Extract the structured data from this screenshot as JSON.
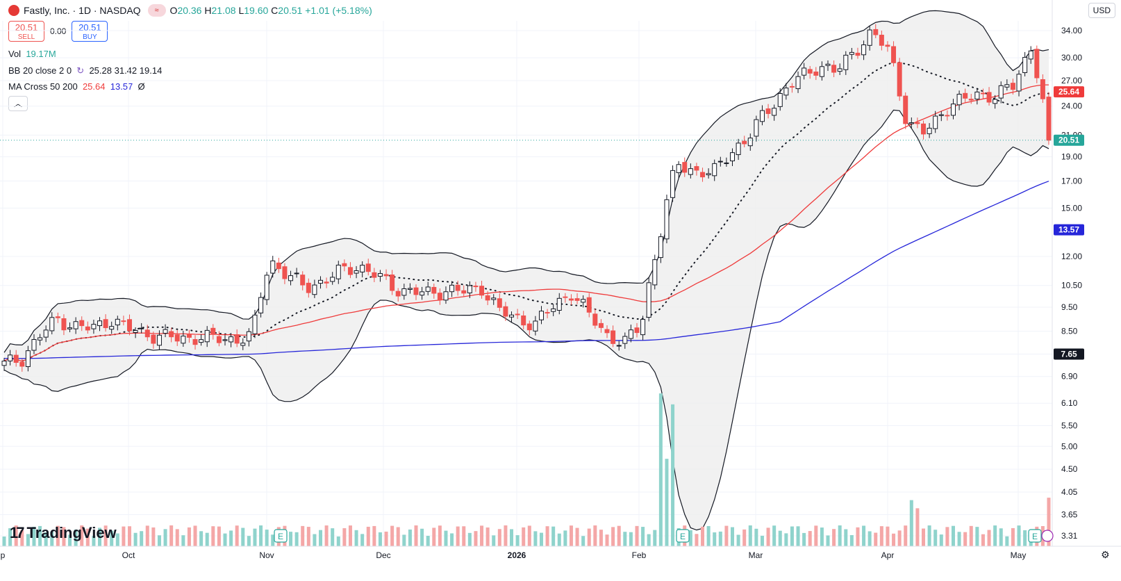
{
  "header": {
    "title": "Fastly, Inc. · 1D · NASDAQ",
    "open_label": "O",
    "open": "20.36",
    "high_label": "H",
    "high": "21.08",
    "low_label": "L",
    "low": "19.60",
    "close_label": "C",
    "close": "20.51",
    "change": "+1.01 (+5.18%)",
    "currency": "USD"
  },
  "trade": {
    "sell_price": "20.51",
    "sell_label": "SELL",
    "spread": "0.00",
    "buy_price": "20.51",
    "buy_label": "BUY"
  },
  "indicators": {
    "vol_label": "Vol",
    "vol_value": "19.17M",
    "bb_label": "BB 20 close 2 0",
    "bb_mid": "25.28",
    "bb_upper": "31.42",
    "bb_lower": "19.14",
    "ma_label": "MA Cross 50 200",
    "ma50": "25.64",
    "ma200": "13.57",
    "ma_extra": "Ø"
  },
  "brand": {
    "name": "TradingView"
  },
  "colors": {
    "up": "#26a69a",
    "down": "#ef5350",
    "ma50": "#ef3b3b",
    "ma200": "#2626d9",
    "bb_fill": "#ededed",
    "vol_up": "#8fd3cc",
    "vol_down": "#f4a7a7"
  },
  "chart_data": {
    "type": "candlestick",
    "scale": "log",
    "y_ticks": [
      "34.00",
      "30.00",
      "27.00",
      "24.00",
      "21.00",
      "19.00",
      "17.00",
      "15.00",
      "12.00",
      "10.50",
      "9.50",
      "8.50",
      "7.65",
      "6.90",
      "6.10",
      "5.50",
      "5.00",
      "4.50",
      "4.05",
      "3.65",
      "3.31"
    ],
    "x_labels": [
      "p",
      "Oct",
      "Nov",
      "Dec",
      "2026",
      "Feb",
      "Mar",
      "Apr",
      "May"
    ],
    "price_labels": [
      {
        "value": "25.64",
        "color": "#ef3b3b"
      },
      {
        "value": "20.51",
        "color": "#26a69a"
      },
      {
        "value": "13.57",
        "color": "#2626d9"
      },
      {
        "value": "7.65",
        "color": "#131722"
      }
    ],
    "earnings_markers": [
      "E",
      "E",
      "E"
    ],
    "ohlc_anchor_closes": [
      7.3,
      7.5,
      8.3,
      9.0,
      8.7,
      8.6,
      9.0,
      8.6,
      8.4,
      8.3,
      8.2,
      8.3,
      8.2,
      8.2,
      8.3,
      11.8,
      11.0,
      10.4,
      10.7,
      11.2,
      11.5,
      11.0,
      10.4,
      10.2,
      10.1,
      10.3,
      10.2,
      10.4,
      9.3,
      9.0,
      8.8,
      9.5,
      10.2,
      9.2,
      8.4,
      8.0,
      8.8,
      13.0,
      18.5,
      17.8,
      17.5,
      19.5,
      20.5,
      23.5,
      25.5,
      27.5,
      29.0,
      28.0,
      31.0,
      33.5,
      31.0,
      22.0,
      21.2,
      23.5,
      24.5,
      25.5,
      25.0,
      26.5,
      31.5,
      20.51
    ],
    "volume_note": "relative"
  }
}
